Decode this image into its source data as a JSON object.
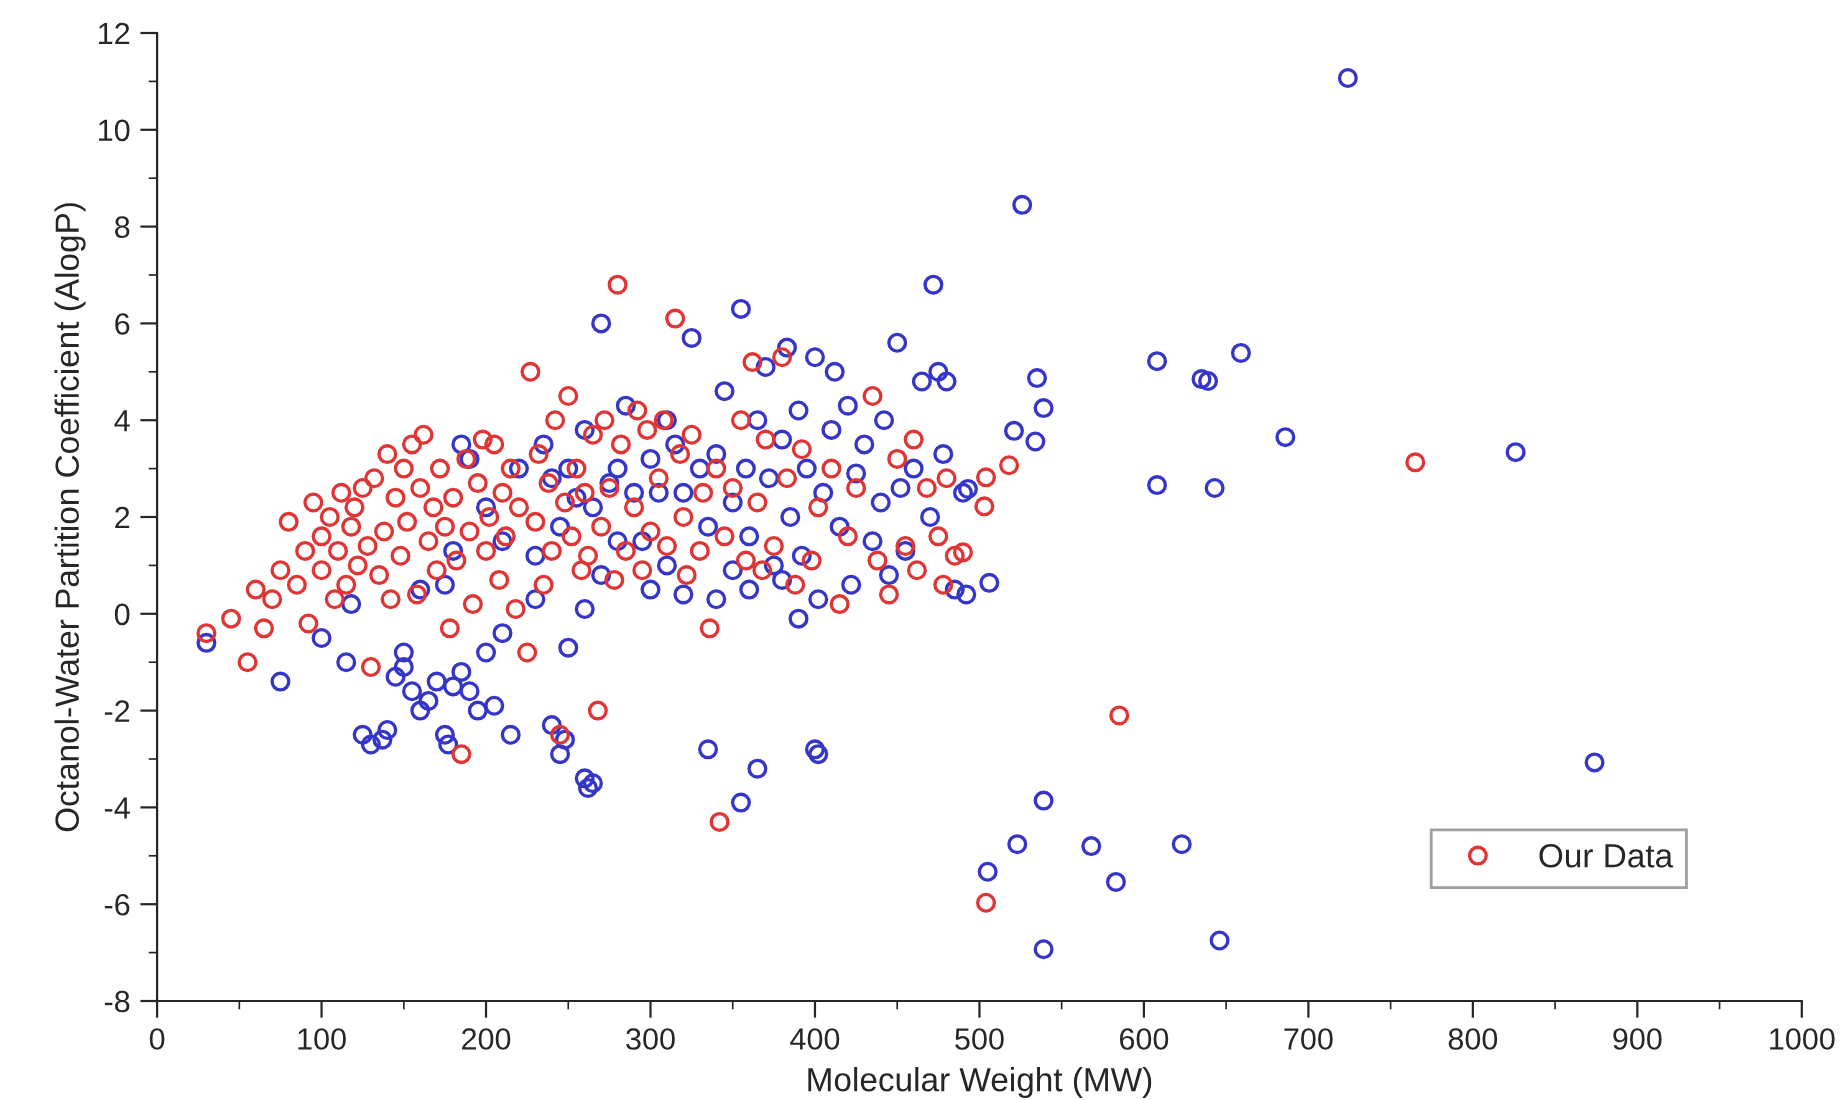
{
  "chart_data": {
    "type": "scatter",
    "xlabel": "Molecular Weight (MW)",
    "ylabel": "Octanol-Water Partition Coefficient (AlogP)",
    "xlim": [
      0,
      1000
    ],
    "ylim": [
      -8,
      12
    ],
    "xticks": [
      0,
      100,
      200,
      300,
      400,
      500,
      600,
      700,
      800,
      900,
      1000
    ],
    "yticks": [
      -8,
      -6,
      -4,
      -2,
      0,
      2,
      4,
      6,
      8,
      10,
      12
    ],
    "grid": false,
    "legend": "bottom right",
    "marker": "circle",
    "series": [
      {
        "color": "#3535c8",
        "x": [
          724,
          526,
          535,
          539,
          521,
          534,
          493,
          506,
          608,
          608,
          635,
          639,
          659,
          643,
          686,
          826,
          874,
          539,
          523,
          568,
          623,
          505,
          583,
          539,
          646,
          30,
          75,
          100,
          115,
          118,
          125,
          130,
          137,
          140,
          145,
          150,
          150,
          155,
          160,
          165,
          170,
          175,
          177,
          180,
          185,
          190,
          195,
          200,
          205,
          210,
          215,
          240,
          245,
          248,
          260,
          262,
          265,
          250,
          335,
          355,
          365,
          400,
          402,
          260,
          270,
          160,
          175,
          180,
          185,
          190,
          200,
          210,
          220,
          230,
          235,
          240,
          245,
          250,
          255,
          260,
          265,
          270,
          275,
          280,
          285,
          290,
          295,
          300,
          305,
          310,
          315,
          320,
          325,
          330,
          335,
          340,
          345,
          350,
          355,
          358,
          360,
          365,
          370,
          372,
          375,
          380,
          383,
          385,
          390,
          392,
          395,
          400,
          402,
          405,
          410,
          412,
          415,
          420,
          422,
          425,
          430,
          435,
          440,
          442,
          445,
          450,
          452,
          455,
          460,
          465,
          470,
          472,
          475,
          478,
          480,
          485,
          490,
          492,
          300,
          310,
          320,
          350,
          360,
          340,
          390,
          380,
          230,
          280
        ],
        "values": [
          11.07,
          8.45,
          4.87,
          4.25,
          3.78,
          3.56,
          2.58,
          0.64,
          5.22,
          2.66,
          4.85,
          4.81,
          5.39,
          2.6,
          3.65,
          3.34,
          -3.07,
          -3.86,
          -4.76,
          -4.8,
          -4.76,
          -5.33,
          -5.54,
          -6.93,
          -6.75,
          -0.6,
          -1.4,
          -0.5,
          -1,
          0.2,
          -2.5,
          -2.7,
          -2.6,
          -2.4,
          -1.3,
          -0.8,
          -1.1,
          -1.6,
          -2,
          -1.8,
          -1.4,
          -2.5,
          -2.7,
          -1.5,
          -1.2,
          -1.6,
          -2,
          -0.8,
          -1.9,
          -0.4,
          -2.5,
          -2.3,
          -2.9,
          -2.6,
          -3.4,
          -3.6,
          -3.5,
          -0.7,
          -2.8,
          -3.9,
          -3.2,
          -2.8,
          -2.9,
          0.1,
          0.8,
          0.5,
          0.6,
          1.3,
          3.5,
          3.2,
          2.2,
          1.5,
          3.0,
          1.2,
          3.5,
          2.8,
          1.8,
          3.0,
          2.4,
          3.8,
          2.2,
          6.0,
          2.7,
          3.0,
          4.3,
          2.5,
          1.5,
          3.2,
          2.5,
          4.0,
          3.5,
          2.5,
          5.7,
          3.0,
          1.8,
          3.3,
          4.6,
          2.3,
          6.3,
          3.0,
          1.6,
          4.0,
          5.1,
          2.8,
          1.0,
          3.6,
          5.5,
          2.0,
          4.2,
          1.2,
          3.0,
          5.3,
          0.3,
          2.5,
          3.8,
          5.0,
          1.8,
          4.3,
          0.6,
          2.9,
          3.5,
          1.5,
          2.3,
          4.0,
          0.8,
          5.6,
          2.6,
          1.3,
          3.0,
          4.8,
          2.0,
          6.8,
          5.0,
          3.3,
          4.8,
          0.5,
          2.5,
          0.4,
          0.5,
          1.0,
          0.4,
          0.9,
          0.5,
          0.3,
          -0.1,
          0.7,
          0.3,
          1.5
        ]
      },
      {
        "name": "Our Data",
        "color": "#e03535",
        "x": [
          504,
          518,
          503,
          490,
          765,
          585,
          504,
          30,
          45,
          55,
          60,
          65,
          70,
          75,
          80,
          85,
          90,
          92,
          95,
          100,
          100,
          105,
          108,
          110,
          112,
          115,
          118,
          120,
          122,
          125,
          128,
          130,
          132,
          135,
          138,
          140,
          142,
          145,
          148,
          150,
          152,
          155,
          158,
          160,
          162,
          165,
          168,
          170,
          172,
          175,
          178,
          180,
          182,
          185,
          188,
          190,
          192,
          195,
          198,
          200,
          202,
          205,
          208,
          210,
          212,
          215,
          218,
          220,
          225,
          227,
          230,
          232,
          235,
          238,
          240,
          242,
          245,
          248,
          250,
          252,
          255,
          258,
          260,
          262,
          265,
          268,
          270,
          272,
          275,
          278,
          280,
          282,
          285,
          290,
          292,
          295,
          298,
          300,
          305,
          308,
          310,
          315,
          318,
          320,
          322,
          325,
          330,
          332,
          336,
          340,
          342,
          345,
          350,
          355,
          358,
          362,
          365,
          368,
          370,
          375,
          380,
          383,
          388,
          392,
          398,
          402,
          410,
          415,
          420,
          425,
          435,
          438,
          445,
          450,
          455,
          460,
          462,
          468,
          475,
          478,
          480,
          485
        ],
        "values": [
          2.82,
          3.07,
          2.22,
          1.27,
          3.13,
          -2.1,
          -5.97,
          -0.4,
          -0.1,
          -1.0,
          0.5,
          -0.3,
          0.3,
          0.9,
          1.9,
          0.6,
          1.3,
          -0.2,
          2.3,
          0.9,
          1.6,
          2.0,
          0.3,
          1.3,
          2.5,
          0.6,
          1.8,
          2.2,
          1.0,
          2.6,
          1.4,
          -1.1,
          2.8,
          0.8,
          1.7,
          3.3,
          0.3,
          2.4,
          1.2,
          3.0,
          1.9,
          3.5,
          0.4,
          2.6,
          3.7,
          1.5,
          2.2,
          0.9,
          3.0,
          1.8,
          -0.3,
          2.4,
          1.1,
          -2.9,
          3.2,
          1.7,
          0.2,
          2.7,
          3.6,
          1.3,
          2.0,
          3.5,
          0.7,
          2.5,
          1.6,
          3.0,
          0.1,
          2.2,
          -0.8,
          5.0,
          1.9,
          3.3,
          0.6,
          2.7,
          1.3,
          4.0,
          -2.5,
          2.3,
          4.5,
          1.6,
          3.0,
          0.9,
          2.5,
          1.2,
          3.7,
          -2.0,
          1.8,
          4.0,
          2.6,
          0.7,
          6.8,
          3.5,
          1.3,
          2.2,
          4.2,
          0.9,
          3.8,
          1.7,
          2.8,
          4.0,
          1.4,
          6.1,
          3.3,
          2.0,
          0.8,
          3.7,
          1.3,
          2.5,
          -0.3,
          3.0,
          -4.3,
          1.6,
          2.6,
          4.0,
          1.1,
          5.2,
          2.3,
          0.9,
          3.6,
          1.4,
          5.3,
          2.8,
          0.6,
          3.4,
          1.1,
          2.2,
          3.0,
          0.2,
          1.6,
          2.6,
          4.5,
          1.1,
          0.4,
          3.2,
          1.4,
          3.6,
          0.9,
          2.6,
          1.6,
          0.6,
          2.8,
          1.2
        ]
      }
    ]
  }
}
